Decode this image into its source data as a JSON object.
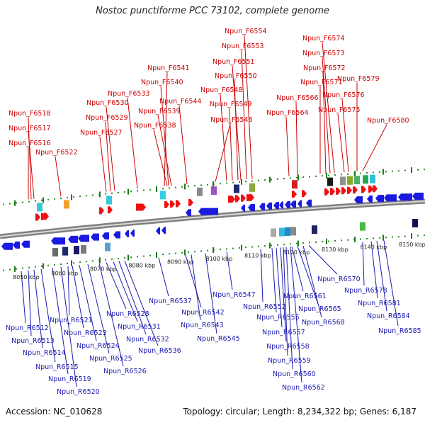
{
  "title": "Nostoc punctiforme PCC 73102, complete genome",
  "footer": {
    "accession": "Accession: NC_010628",
    "summary": "Topology: circular; Length: 8,234,322 bp; Genes: 6,187"
  },
  "colors": {
    "forward": "#ee1111",
    "reverse": "#1a1ae0",
    "label_forward": "#cc0000",
    "label_reverse": "#1a1ab0",
    "backbone": "#9a9a9a"
  },
  "scale_labels": [
    "8050 kbp",
    "8060 kbp",
    "8070 kbp",
    "8080 kbp",
    "8090 kbp",
    "8100 kbp",
    "8110 kbp",
    "8120 kbp",
    "8130 kbp",
    "8140 kbp",
    "8150 kbp"
  ],
  "forward_genes": [
    "Npun_F6518",
    "Npun_F6517",
    "Npun_F6516",
    "Npun_F6522",
    "Npun_F6527",
    "Npun_F6529",
    "Npun_F6530",
    "Npun_F6533",
    "Npun_F6538",
    "Npun_F6539",
    "Npun_F6540",
    "Npun_F6541",
    "Npun_F6544",
    "Npun_F6546",
    "Npun_F6548",
    "Npun_F6549",
    "Npun_F6550",
    "Npun_F6551",
    "Npun_F6553",
    "Npun_F6554",
    "Npun_F6564",
    "Npun_F6566",
    "Npun_F6571",
    "Npun_F6572",
    "Npun_F6573",
    "Npun_F6574",
    "Npun_F6575",
    "Npun_F6576",
    "Npun_F6579",
    "Npun_F6580"
  ],
  "reverse_genes": [
    "Npun_R6512",
    "Npun_R6513",
    "Npun_R6514",
    "Npun_R6515",
    "Npun_R6519",
    "Npun_R6520",
    "Npun_R6521",
    "Npun_R6523",
    "Npun_R6524",
    "Npun_R6525",
    "Npun_R6526",
    "Npun_R6528",
    "Npun_R6531",
    "Npun_R6532",
    "Npun_R6536",
    "Npun_R6537",
    "Npun_R6542",
    "Npun_R6543",
    "Npun_R6545",
    "Npun_R6547",
    "Npun_R6552",
    "Npun_R6555",
    "Npun_R6557",
    "Npun_R6558",
    "Npun_R6559",
    "Npun_R6560",
    "Npun_R6561",
    "Npun_R6562",
    "Npun_R6565",
    "Npun_R6568",
    "Npun_R6570",
    "Npun_R6578",
    "Npun_R6581",
    "Npun_R6584",
    "Npun_R6585"
  ]
}
